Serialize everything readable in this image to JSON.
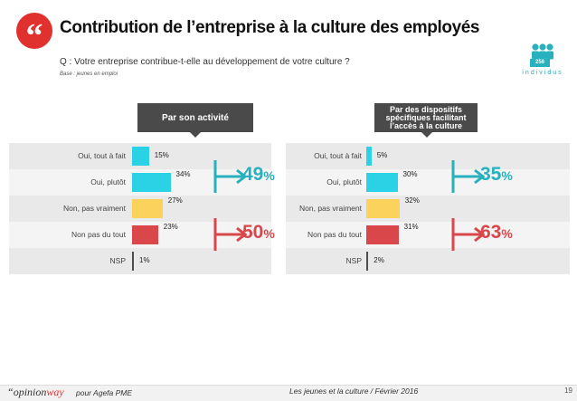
{
  "header": {
    "quote_mark": "“",
    "title": "Contribution de l’entreprise à la culture des employés",
    "question": "Q : Votre entreprise contribue-t-elle au développement de votre culture ?",
    "base": "Base : jeunes en emploi",
    "count_badge": "256",
    "count_label": "individus"
  },
  "colors": {
    "red_accent": "#e0312f",
    "teal": "#27b0bd",
    "cyan": "#2bd1e4",
    "yellow": "#fbd35c",
    "red": "#d9474b",
    "gray_bar": "#4d4d4d",
    "banner": "#4a4a4a"
  },
  "chart_data": [
    {
      "type": "bar",
      "orientation": "horizontal",
      "title": "Par son activité",
      "categories": [
        "Oui, tout à fait",
        "Oui, plutôt",
        "Non, pas vraiment",
        "Non pas du tout",
        "NSP"
      ],
      "values": [
        15,
        34,
        27,
        23,
        1
      ],
      "value_labels": [
        "15%",
        "34%",
        "27%",
        "23%",
        "1%"
      ],
      "xlim": [
        0,
        100
      ],
      "grid": false,
      "legend": "none",
      "summaries": [
        {
          "value": "49",
          "unit": "%",
          "color": "#27b0bd",
          "rows": [
            0,
            1
          ]
        },
        {
          "value": "50",
          "unit": "%",
          "color": "#d9474b",
          "rows": [
            2,
            3
          ]
        }
      ]
    },
    {
      "type": "bar",
      "orientation": "horizontal",
      "title": "Par des dispositifs spécifiques facilitant l’accès à la culture",
      "categories": [
        "Oui, tout à fait",
        "Oui, plutôt",
        "Non, pas vraiment",
        "Non pas du tout",
        "NSP"
      ],
      "values": [
        5,
        30,
        32,
        31,
        2
      ],
      "value_labels": [
        "5%",
        "30%",
        "32%",
        "31%",
        "2%"
      ],
      "xlim": [
        0,
        100
      ],
      "grid": false,
      "legend": "none",
      "summaries": [
        {
          "value": "35",
          "unit": "%",
          "color": "#27b0bd",
          "rows": [
            0,
            1
          ]
        },
        {
          "value": "63",
          "unit": "%",
          "color": "#d9474b",
          "rows": [
            2,
            3
          ]
        }
      ]
    }
  ],
  "footer": {
    "brand_prefix": "“",
    "brand_main": "opinion",
    "brand_accent": "way",
    "client": "pour Agefa PME",
    "center_text": "Les jeunes et la culture / Février 2016",
    "page": "19"
  }
}
